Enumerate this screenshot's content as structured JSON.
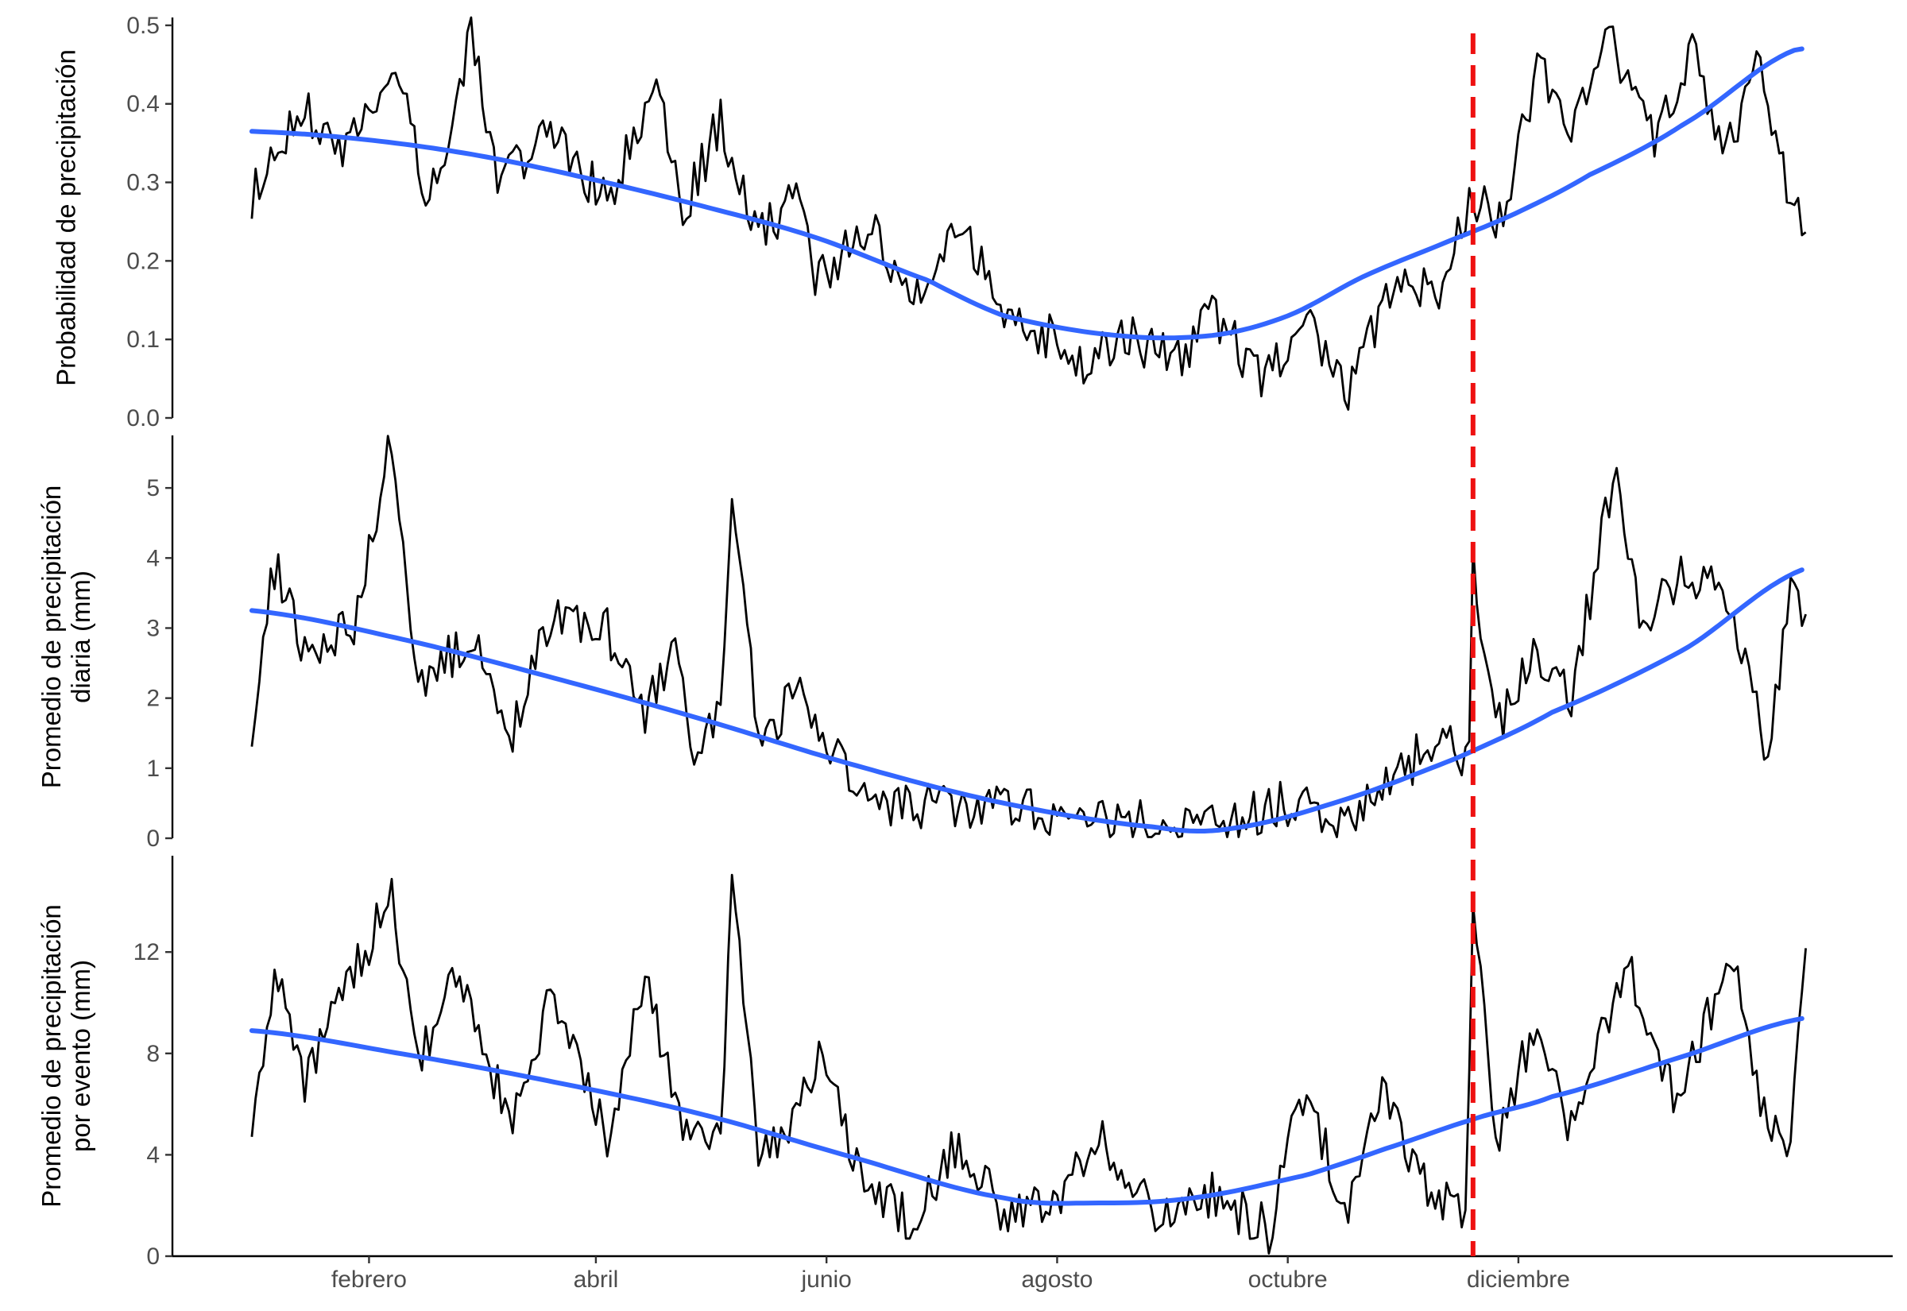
{
  "colors": {
    "series": "#000000",
    "smooth": "#3366ff",
    "marker": "#ee1111",
    "axis": "#000000",
    "tick_text": "#4d4d4d"
  },
  "chart_data": [
    {
      "type": "line",
      "ylabel": [
        "Probabilidad de precipitación"
      ],
      "ylim": [
        0,
        0.51
      ],
      "yticks": [
        0.0,
        0.1,
        0.2,
        0.3,
        0.4,
        0.5
      ],
      "ytick_labels": [
        "0.0",
        "0.1",
        "0.2",
        "0.3",
        "0.4",
        "0.5"
      ],
      "smooth_points": [
        [
          1,
          0.365
        ],
        [
          30,
          0.355
        ],
        [
          60,
          0.335
        ],
        [
          90,
          0.305
        ],
        [
          120,
          0.27
        ],
        [
          150,
          0.23
        ],
        [
          180,
          0.175
        ],
        [
          200,
          0.13
        ],
        [
          230,
          0.105
        ],
        [
          255,
          0.105
        ],
        [
          275,
          0.13
        ],
        [
          295,
          0.18
        ],
        [
          315,
          0.22
        ],
        [
          335,
          0.26
        ],
        [
          355,
          0.31
        ],
        [
          380,
          0.375
        ],
        [
          410,
          0.47
        ]
      ],
      "anchor_points": [
        [
          1,
          0.28
        ],
        [
          15,
          0.4
        ],
        [
          25,
          0.33
        ],
        [
          39,
          0.45
        ],
        [
          47,
          0.28
        ],
        [
          55,
          0.39
        ],
        [
          59,
          0.5
        ],
        [
          66,
          0.3
        ],
        [
          80,
          0.37
        ],
        [
          95,
          0.27
        ],
        [
          108,
          0.43
        ],
        [
          115,
          0.26
        ],
        [
          125,
          0.38
        ],
        [
          135,
          0.23
        ],
        [
          146,
          0.29
        ],
        [
          150,
          0.18
        ],
        [
          165,
          0.24
        ],
        [
          175,
          0.14
        ],
        [
          187,
          0.26
        ],
        [
          200,
          0.14
        ],
        [
          213,
          0.1
        ],
        [
          222,
          0.06
        ],
        [
          232,
          0.11
        ],
        [
          245,
          0.07
        ],
        [
          255,
          0.13
        ],
        [
          268,
          0.05
        ],
        [
          280,
          0.12
        ],
        [
          291,
          0.04
        ],
        [
          305,
          0.19
        ],
        [
          315,
          0.15
        ],
        [
          323,
          0.28
        ],
        [
          332,
          0.25
        ],
        [
          341,
          0.45
        ],
        [
          350,
          0.36
        ],
        [
          360,
          0.48
        ],
        [
          372,
          0.35
        ],
        [
          382,
          0.47
        ],
        [
          390,
          0.33
        ],
        [
          400,
          0.45
        ],
        [
          408,
          0.27
        ],
        [
          412,
          0.25
        ]
      ]
    },
    {
      "type": "line",
      "ylabel": [
        "Promedio de precipitación",
        "diaria (mm)"
      ],
      "ylim": [
        0,
        5.75
      ],
      "yticks": [
        0,
        1,
        2,
        3,
        4,
        5
      ],
      "ytick_labels": [
        "0",
        "1",
        "2",
        "3",
        "4",
        "5"
      ],
      "smooth_points": [
        [
          1,
          3.25
        ],
        [
          40,
          2.85
        ],
        [
          80,
          2.3
        ],
        [
          120,
          1.7
        ],
        [
          160,
          1.05
        ],
        [
          200,
          0.5
        ],
        [
          240,
          0.16
        ],
        [
          260,
          0.14
        ],
        [
          290,
          0.55
        ],
        [
          320,
          1.15
        ],
        [
          345,
          1.8
        ],
        [
          380,
          2.7
        ],
        [
          412,
          3.85
        ]
      ],
      "anchor_points": [
        [
          1,
          1.6
        ],
        [
          7,
          3.9
        ],
        [
          15,
          2.7
        ],
        [
          28,
          3.1
        ],
        [
          38,
          5.7
        ],
        [
          45,
          2.2
        ],
        [
          60,
          2.9
        ],
        [
          70,
          1.5
        ],
        [
          80,
          3.2
        ],
        [
          95,
          3.0
        ],
        [
          105,
          1.8
        ],
        [
          113,
          2.7
        ],
        [
          118,
          1.2
        ],
        [
          125,
          1.7
        ],
        [
          128,
          4.6
        ],
        [
          135,
          1.5
        ],
        [
          146,
          2.0
        ],
        [
          160,
          0.7
        ],
        [
          175,
          0.4
        ],
        [
          190,
          0.5
        ],
        [
          205,
          0.4
        ],
        [
          220,
          0.3
        ],
        [
          237,
          0.2
        ],
        [
          250,
          0.1
        ],
        [
          263,
          0.3
        ],
        [
          275,
          0.5
        ],
        [
          290,
          0.3
        ],
        [
          302,
          0.8
        ],
        [
          314,
          1.4
        ],
        [
          323,
          1.1
        ],
        [
          324,
          3.9
        ],
        [
          330,
          1.5
        ],
        [
          340,
          2.6
        ],
        [
          350,
          2.0
        ],
        [
          362,
          5.5
        ],
        [
          368,
          3.0
        ],
        [
          380,
          3.8
        ],
        [
          392,
          3.5
        ],
        [
          402,
          1.2
        ],
        [
          408,
          3.7
        ],
        [
          412,
          2.9
        ]
      ]
    },
    {
      "type": "line",
      "ylabel": [
        "Promedio de precipitación",
        "por evento (mm)"
      ],
      "ylim": [
        0,
        15.8
      ],
      "yticks": [
        0,
        4,
        8,
        12
      ],
      "ytick_labels": [
        "0",
        "4",
        "8",
        "12"
      ],
      "smooth_points": [
        [
          1,
          8.9
        ],
        [
          40,
          8.0
        ],
        [
          80,
          6.9
        ],
        [
          120,
          5.6
        ],
        [
          160,
          3.9
        ],
        [
          200,
          2.3
        ],
        [
          225,
          2.1
        ],
        [
          250,
          2.3
        ],
        [
          280,
          3.2
        ],
        [
          300,
          4.2
        ],
        [
          324,
          5.4
        ],
        [
          345,
          6.3
        ],
        [
          380,
          7.9
        ],
        [
          412,
          9.4
        ]
      ],
      "anchor_points": [
        [
          1,
          5.5
        ],
        [
          7,
          11.2
        ],
        [
          15,
          6.5
        ],
        [
          25,
          10.5
        ],
        [
          38,
          14.1
        ],
        [
          45,
          7.5
        ],
        [
          55,
          11.5
        ],
        [
          70,
          5.0
        ],
        [
          80,
          10.5
        ],
        [
          95,
          4.5
        ],
        [
          105,
          11.0
        ],
        [
          115,
          5.0
        ],
        [
          125,
          4.5
        ],
        [
          128,
          15.5
        ],
        [
          135,
          4.0
        ],
        [
          145,
          5.5
        ],
        [
          152,
          8.2
        ],
        [
          160,
          3.5
        ],
        [
          175,
          1.5
        ],
        [
          188,
          4.5
        ],
        [
          200,
          1.5
        ],
        [
          215,
          2.5
        ],
        [
          225,
          5.0
        ],
        [
          240,
          1.5
        ],
        [
          255,
          2.5
        ],
        [
          270,
          1.0
        ],
        [
          280,
          7.0
        ],
        [
          290,
          1.2
        ],
        [
          300,
          6.5
        ],
        [
          312,
          2.5
        ],
        [
          322,
          2.0
        ],
        [
          324,
          14.0
        ],
        [
          330,
          4.5
        ],
        [
          340,
          9.0
        ],
        [
          350,
          5.0
        ],
        [
          365,
          11.5
        ],
        [
          378,
          6.0
        ],
        [
          392,
          12.0
        ],
        [
          402,
          5.0
        ],
        [
          408,
          4.5
        ],
        [
          412,
          12.0
        ]
      ]
    }
  ],
  "x_axis": {
    "xlim": [
      -20,
      435
    ],
    "ticks": [
      32,
      92,
      153,
      214,
      275,
      336
    ],
    "tick_labels": [
      "febrero",
      "abril",
      "junio",
      "agosto",
      "octubre",
      "diciembre"
    ],
    "n_days": 366,
    "series_start": 1,
    "series_end": 412,
    "marker_x": 324
  }
}
